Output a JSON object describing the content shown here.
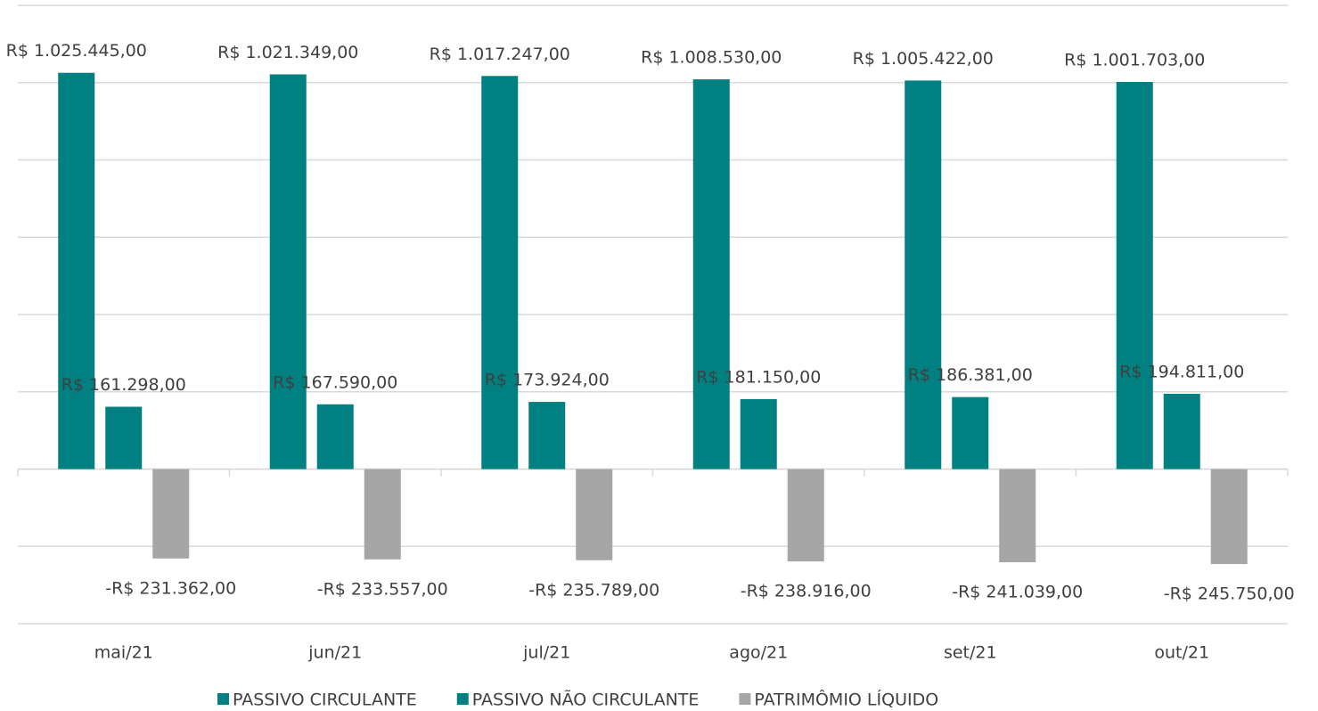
{
  "chart_data": {
    "type": "bar",
    "categories": [
      "mai/21",
      "jun/21",
      "jul/21",
      "ago/21",
      "set/21",
      "out/21"
    ],
    "series": [
      {
        "name": "PASSIVO CIRCULANTE",
        "color": "#008080",
        "values": [
          1025445,
          1021349,
          1017247,
          1008530,
          1005422,
          1001703
        ],
        "value_labels": [
          "R$ 1.025.445,00",
          "R$ 1.021.349,00",
          "R$ 1.017.247,00",
          "R$ 1.008.530,00",
          "R$ 1.005.422,00",
          "R$ 1.001.703,00"
        ]
      },
      {
        "name": "PASSIVO NÃO CIRCULANTE",
        "color": "#008080",
        "values": [
          161298,
          167590,
          173924,
          181150,
          186381,
          194811
        ],
        "value_labels": [
          "R$ 161.298,00",
          "R$ 167.590,00",
          "R$ 173.924,00",
          "R$ 181.150,00",
          "R$ 186.381,00",
          "R$ 194.811,00"
        ]
      },
      {
        "name": "PATRIMÔMIO LÍQUIDO",
        "color": "#a6a6a6",
        "values": [
          -231362,
          -233557,
          -235789,
          -238916,
          -241039,
          -245750
        ],
        "value_labels": [
          "-R$ 231.362,00",
          "-R$ 233.557,00",
          "-R$ 235.789,00",
          "-R$ 238.916,00",
          "-R$ 241.039,00",
          "-R$ 245.750,00"
        ]
      }
    ],
    "ylim": [
      -400000,
      1200000
    ],
    "yticks": [
      -400000,
      -200000,
      0,
      200000,
      400000,
      600000,
      800000,
      1000000,
      1200000
    ],
    "grid": true,
    "legend": "bottom"
  }
}
